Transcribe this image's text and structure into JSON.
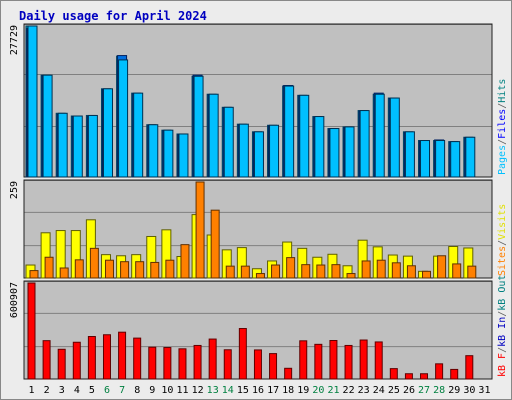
{
  "chart_data": {
    "type": "bar",
    "title": "Daily usage for April 2024",
    "days": [
      "1",
      "2",
      "3",
      "4",
      "5",
      "6",
      "7",
      "8",
      "9",
      "10",
      "11",
      "12",
      "13",
      "14",
      "15",
      "16",
      "17",
      "18",
      "19",
      "20",
      "21",
      "22",
      "23",
      "24",
      "25",
      "26",
      "27",
      "28",
      "29",
      "30",
      "31"
    ],
    "weekend_days": [
      "6",
      "7",
      "13",
      "14",
      "20",
      "21",
      "27",
      "28"
    ],
    "panels": [
      {
        "name": "top",
        "y_max_label": "27729",
        "y_max": 27729,
        "series": [
          {
            "name": "Hits",
            "color": "#00b0d0",
            "values": [
              27729,
              18700,
              11700,
              11200,
              11300,
              16200,
              22200,
              15400,
              9600,
              8600,
              7900,
              18500,
              15200,
              12800,
              9700,
              8300,
              9500,
              16700,
              15000,
              11100,
              8900,
              9200,
              12200,
              15200,
              14500,
              8300,
              6700,
              6700,
              6500,
              7300,
              null
            ]
          },
          {
            "name": "Files",
            "color": "#0080ff",
            "values": [
              27300,
              18600,
              11500,
              11100,
              11100,
              16100,
              22300,
              15300,
              9500,
              8500,
              7800,
              18700,
              15100,
              12700,
              9600,
              8200,
              9400,
              16800,
              14900,
              11000,
              8800,
              9100,
              12100,
              15400,
              14400,
              8200,
              6600,
              6800,
              6400,
              7200,
              null
            ]
          },
          {
            "name": "Pages",
            "color": "#00c0ff",
            "values": [
              27729,
              18700,
              11700,
              11200,
              11300,
              16200,
              21500,
              15400,
              9600,
              8600,
              7900,
              18500,
              15200,
              12800,
              9700,
              8300,
              9500,
              16700,
              15000,
              11100,
              8900,
              9200,
              12200,
              15200,
              14500,
              8300,
              6700,
              6700,
              6500,
              7300,
              null
            ]
          }
        ]
      },
      {
        "name": "middle",
        "y_max_label": "259",
        "y_max": 259,
        "series": [
          {
            "name": "Visits",
            "color": "#ffff00",
            "values": [
              35,
              122,
              128,
              128,
              157,
              63,
              60,
              63,
              112,
              130,
              58,
              171,
              116,
              76,
              82,
              25,
              46,
              97,
              80,
              56,
              64,
              33,
              102,
              84,
              62,
              59,
              18,
              59,
              85,
              81,
              null
            ]
          },
          {
            "name": "Sites",
            "color": "#ff8000",
            "values": [
              20,
              56,
              27,
              49,
              80,
              48,
              44,
              44,
              42,
              48,
              90,
              259,
              183,
              32,
              32,
              12,
              35,
              55,
              36,
              35,
              36,
              12,
              46,
              48,
              41,
              33,
              18,
              60,
              38,
              32,
              null
            ]
          }
        ]
      },
      {
        "name": "bottom",
        "y_max_label": "600907",
        "y_max": 600907,
        "series": [
          {
            "name": "kB F",
            "color": "#ff0000",
            "values": [
              600907,
              240000,
              186000,
              230000,
              266000,
              277000,
              293000,
              256000,
              199000,
              197000,
              189000,
              210000,
              250000,
              183000,
              316000,
              182000,
              159000,
              67000,
              239000,
              217000,
              241000,
              210000,
              244000,
              232000,
              65000,
              33000,
              33000,
              95000,
              60000,
              146000,
              null
            ]
          },
          {
            "name": "kB In",
            "color": "#0000c0",
            "values": [
              0,
              0,
              0,
              0,
              0,
              0,
              0,
              0,
              0,
              0,
              0,
              0,
              0,
              0,
              0,
              0,
              0,
              0,
              0,
              0,
              0,
              0,
              0,
              0,
              0,
              0,
              0,
              0,
              0,
              0,
              null
            ]
          },
          {
            "name": "kB Out",
            "color": "#008080",
            "values": [
              0,
              0,
              0,
              0,
              0,
              0,
              0,
              0,
              0,
              0,
              0,
              0,
              0,
              0,
              0,
              0,
              0,
              0,
              0,
              0,
              0,
              0,
              0,
              0,
              0,
              0,
              0,
              0,
              0,
              0,
              null
            ]
          }
        ]
      }
    ]
  },
  "legend": {
    "top": [
      {
        "label": "Pages",
        "color": "#00c0ff"
      },
      {
        "label": "/",
        "color": "#606060"
      },
      {
        "label": "Files",
        "color": "#0000ff"
      },
      {
        "label": "/",
        "color": "#606060"
      },
      {
        "label": "Hits",
        "color": "#008080"
      }
    ],
    "middle": [
      {
        "label": "Sites",
        "color": "#ff8000"
      },
      {
        "label": "/",
        "color": "#606060"
      },
      {
        "label": "Visits",
        "color": "#e0e000"
      }
    ],
    "bottom": [
      {
        "label": "kB F",
        "color": "#ff0000"
      },
      {
        "label": "/",
        "color": "#606060"
      },
      {
        "label": "kB In",
        "color": "#0000c0"
      },
      {
        "label": "/",
        "color": "#606060"
      },
      {
        "label": "kB Out",
        "color": "#008080"
      }
    ]
  },
  "colors": {
    "plot_bg": "#c0c0c0",
    "gridline": "#808080",
    "weekday_label": "#000000",
    "weekend_label": "#008040"
  }
}
